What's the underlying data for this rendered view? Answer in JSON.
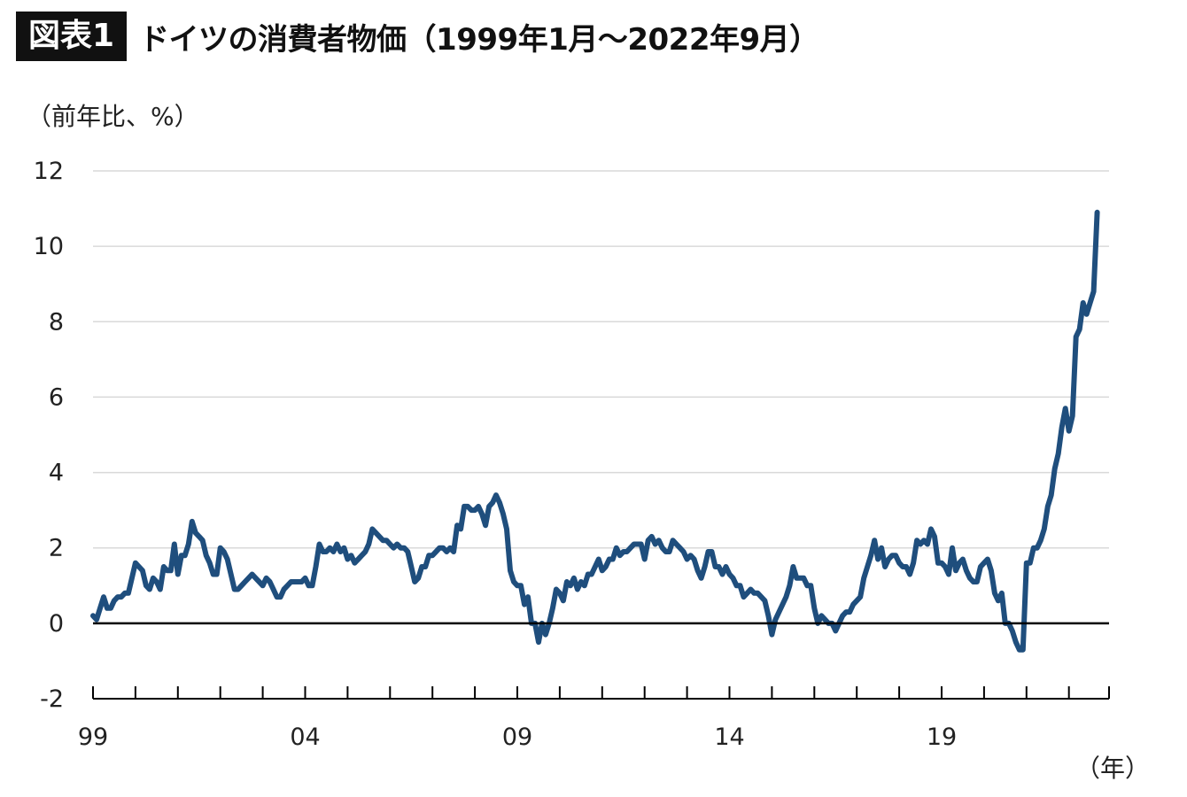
{
  "header": {
    "badge": "図表1",
    "title": "ドイツの消費者物価（1999年1月〜2022年9月）"
  },
  "colors": {
    "line": "#1f4e7d",
    "zero_line": "#000000",
    "grid": "#d9d9d9",
    "badge_bg": "#111111"
  },
  "chart_data": {
    "type": "line",
    "ylabel": "（前年比、%）",
    "xlabel": "（年）",
    "ylim": [
      -2,
      12
    ],
    "y_ticks": [
      "12",
      "10",
      "8",
      "6",
      "4",
      "2",
      "0",
      "-2"
    ],
    "x_tick_labels": [
      "99",
      "04",
      "09",
      "14",
      "19"
    ],
    "x_start": "1999-01",
    "x_end": "2022-09",
    "grid": "horizontal",
    "series": [
      {
        "values": [
          0.2,
          0.1,
          0.4,
          0.7,
          0.4,
          0.4,
          0.6,
          0.7,
          0.7,
          0.8,
          0.8,
          1.2,
          1.6,
          1.5,
          1.4,
          1.0,
          0.9,
          1.2,
          1.1,
          0.9,
          1.5,
          1.4,
          1.4,
          2.1,
          1.3,
          1.8,
          1.8,
          2.1,
          2.7,
          2.4,
          2.3,
          2.2,
          1.8,
          1.6,
          1.3,
          1.3,
          2.0,
          1.9,
          1.7,
          1.3,
          0.9,
          0.9,
          1.0,
          1.1,
          1.2,
          1.3,
          1.2,
          1.1,
          1.0,
          1.2,
          1.1,
          0.9,
          0.7,
          0.7,
          0.9,
          1.0,
          1.1,
          1.1,
          1.1,
          1.1,
          1.2,
          1.0,
          1.0,
          1.5,
          2.1,
          1.9,
          1.9,
          2.0,
          1.9,
          2.1,
          1.9,
          2.0,
          1.7,
          1.8,
          1.6,
          1.7,
          1.8,
          1.9,
          2.1,
          2.5,
          2.4,
          2.3,
          2.2,
          2.2,
          2.1,
          2.0,
          2.1,
          2.0,
          2.0,
          1.9,
          1.5,
          1.1,
          1.2,
          1.5,
          1.5,
          1.8,
          1.8,
          1.9,
          2.0,
          2.0,
          1.9,
          2.0,
          1.9,
          2.6,
          2.5,
          3.1,
          3.1,
          3.0,
          3.0,
          3.1,
          2.9,
          2.6,
          3.1,
          3.2,
          3.4,
          3.2,
          2.9,
          2.5,
          1.4,
          1.1,
          1.0,
          1.0,
          0.5,
          0.7,
          0.0,
          0.0,
          -0.5,
          0.0,
          -0.3,
          0.0,
          0.4,
          0.9,
          0.8,
          0.6,
          1.1,
          1.0,
          1.2,
          0.9,
          1.1,
          1.0,
          1.3,
          1.3,
          1.5,
          1.7,
          1.4,
          1.5,
          1.7,
          1.7,
          2.0,
          1.8,
          1.9,
          1.9,
          2.0,
          2.1,
          2.1,
          2.1,
          1.7,
          2.2,
          2.3,
          2.1,
          2.2,
          2.0,
          1.9,
          1.9,
          2.2,
          2.1,
          2.0,
          1.9,
          1.7,
          1.8,
          1.7,
          1.4,
          1.2,
          1.5,
          1.9,
          1.9,
          1.5,
          1.5,
          1.3,
          1.5,
          1.3,
          1.2,
          1.0,
          1.0,
          0.7,
          0.8,
          0.9,
          0.8,
          0.8,
          0.7,
          0.6,
          0.2,
          -0.3,
          0.1,
          0.3,
          0.5,
          0.7,
          1.0,
          1.5,
          1.2,
          1.2,
          1.2,
          1.0,
          1.0,
          0.4,
          0.0,
          0.2,
          0.1,
          0.0,
          0.0,
          -0.2,
          0.0,
          0.2,
          0.3,
          0.3,
          0.5,
          0.6,
          0.7,
          1.2,
          1.5,
          1.8,
          2.2,
          1.7,
          2.0,
          1.5,
          1.7,
          1.8,
          1.8,
          1.6,
          1.5,
          1.5,
          1.3,
          1.6,
          2.2,
          2.1,
          2.2,
          2.1,
          2.5,
          2.3,
          1.6,
          1.6,
          1.5,
          1.3,
          2.0,
          1.4,
          1.6,
          1.7,
          1.4,
          1.2,
          1.1,
          1.1,
          1.5,
          1.6,
          1.7,
          1.4,
          0.8,
          0.6,
          0.8,
          0.0,
          0.0,
          -0.2,
          -0.5,
          -0.7,
          -0.7,
          1.6,
          1.6,
          2.0,
          2.0,
          2.2,
          2.5,
          3.1,
          3.4,
          4.1,
          4.5,
          5.2,
          5.7,
          5.1,
          5.5,
          7.6,
          7.8,
          8.5,
          8.2,
          8.5,
          8.8,
          10.9
        ]
      }
    ]
  }
}
